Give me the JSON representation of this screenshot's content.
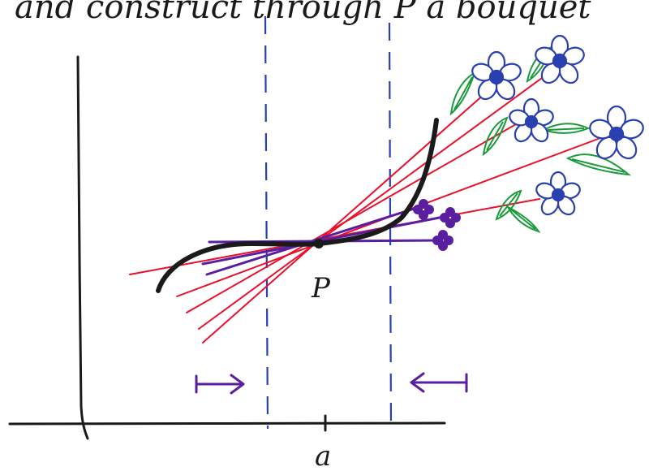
{
  "caption": "and construct through P a bouquet",
  "point_label": "P",
  "tick_label": "a",
  "colors": {
    "ink": "#1a1a1a",
    "secant": "#e8102a",
    "tangent_bundle": "#5a1fa0",
    "boundary": "#2a3fb0",
    "petal": "#2a3fb0",
    "leaf": "#1a9a3a",
    "arrow": "#5a1fa0"
  },
  "icons": {
    "flower": "flower-icon",
    "leaf": "leaf-icon",
    "arrow_right": "arrow-right-icon",
    "arrow_left": "arrow-left-icon"
  }
}
